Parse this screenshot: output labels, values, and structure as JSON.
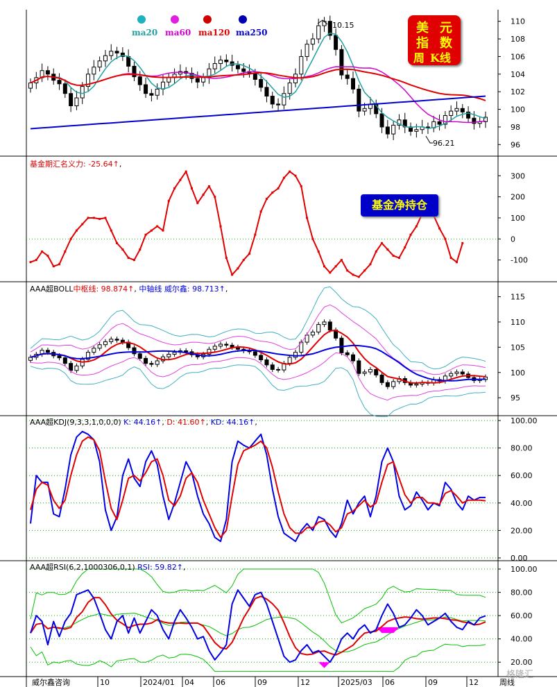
{
  "badge": {
    "chars": [
      "美",
      "元",
      "指",
      "数",
      "周",
      "K线"
    ]
  },
  "net_position_label": "基金净持仓",
  "footer": {
    "source": "威尔鑫咨询",
    "period": "周线"
  },
  "watermark": "格隆汇",
  "colors": {
    "ma20": "#20a0a0",
    "ma60": "#d000d0",
    "ma120": "#e00000",
    "ma250": "#0000c8",
    "red": "#e00000",
    "blue": "#0000e0",
    "green": "#00c000"
  },
  "chart_data": [
    {
      "id": "price",
      "type": "candlestick",
      "legend": [
        "ma20",
        "ma60",
        "ma120",
        "ma250"
      ],
      "ylim": [
        95,
        111
      ],
      "yticks": [
        96,
        98,
        100,
        102,
        104,
        106,
        108,
        110
      ],
      "annotations": {
        "high": "110.15",
        "low": "96.21"
      },
      "close": [
        103.0,
        103.6,
        104.4,
        104.0,
        103.3,
        102.9,
        101.8,
        100.4,
        101.3,
        102.6,
        104.0,
        104.8,
        105.5,
        106.1,
        106.6,
        106.4,
        106.0,
        104.9,
        103.7,
        102.8,
        101.8,
        101.6,
        102.3,
        103.1,
        103.6,
        104.0,
        104.3,
        104.1,
        103.5,
        103.1,
        103.6,
        104.6,
        105.2,
        105.6,
        105.4,
        105.0,
        104.6,
        104.3,
        104.1,
        103.4,
        102.5,
        101.5,
        100.6,
        100.5,
        101.8,
        103.0,
        104.0,
        106.0,
        107.4,
        108.0,
        109.5,
        110.0,
        108.4,
        106.8,
        103.9,
        103.5,
        102.3,
        99.8,
        100.1,
        100.6,
        99.5,
        98.0,
        97.2,
        98.2,
        98.8,
        98.0,
        97.5,
        97.7,
        98.0,
        97.9,
        98.6,
        98.3,
        99.3,
        99.8,
        100.1,
        99.7,
        99.0,
        98.4,
        98.6,
        99.1
      ]
    },
    {
      "id": "fund-positions",
      "type": "line",
      "title_label": "基金期汇名义力: ",
      "title_value": "-25.64",
      "ylim": [
        -190,
        370
      ],
      "yticks": [
        -100,
        0,
        100,
        200,
        300
      ],
      "values": [
        -110,
        -100,
        -60,
        -80,
        -130,
        -120,
        -60,
        0,
        40,
        70,
        100,
        100,
        95,
        100,
        40,
        -20,
        -50,
        -90,
        -100,
        -50,
        20,
        40,
        60,
        40,
        180,
        240,
        280,
        320,
        240,
        170,
        210,
        250,
        200,
        60,
        -90,
        -170,
        -140,
        -100,
        -70,
        20,
        130,
        190,
        220,
        240,
        290,
        320,
        300,
        250,
        100,
        0,
        -60,
        -130,
        -160,
        -130,
        -100,
        -150,
        -170,
        -180,
        -150,
        -120,
        -60,
        -20,
        -50,
        -80,
        -90,
        -40,
        20,
        60,
        120,
        150,
        110,
        50,
        0,
        -90,
        -110,
        -20
      ]
    },
    {
      "id": "boll",
      "type": "line",
      "title_label": "AAA超BOLL",
      "mid_label": "中枢线: ",
      "mid_value": "98.874",
      "axis_label": "中轴线 威尔鑫: ",
      "axis_value": "98.713",
      "ylim": [
        92,
        117
      ],
      "yticks": [
        95,
        100,
        105,
        110,
        115
      ]
    },
    {
      "id": "kdj",
      "type": "line",
      "title_label": "AAA超KDJ(9,3,3,1,0,0,0)",
      "series": [
        {
          "name": "K",
          "value": "44.16",
          "values": [
            25,
            60,
            55,
            55,
            32,
            30,
            50,
            75,
            88,
            92,
            90,
            86,
            70,
            35,
            20,
            30,
            60,
            72,
            58,
            52,
            70,
            78,
            68,
            45,
            28,
            40,
            55,
            70,
            62,
            45,
            32,
            25,
            15,
            12,
            28,
            70,
            85,
            82,
            80,
            85,
            90,
            75,
            50,
            30,
            18,
            15,
            12,
            20,
            25,
            20,
            30,
            28,
            20,
            15,
            25,
            42,
            32,
            40,
            45,
            30,
            45,
            70,
            80,
            70,
            45,
            35,
            38,
            48,
            42,
            35,
            40,
            38,
            55,
            50,
            40,
            35,
            45,
            42,
            44,
            44
          ]
        },
        {
          "name": "D",
          "value": "41.60",
          "values": [
            35,
            50,
            55,
            53,
            42,
            36,
            42,
            60,
            75,
            85,
            88,
            86,
            78,
            56,
            36,
            28,
            42,
            58,
            60,
            56,
            62,
            70,
            72,
            60,
            42,
            38,
            45,
            58,
            62,
            55,
            42,
            32,
            22,
            15,
            20,
            45,
            68,
            78,
            80,
            82,
            85,
            80,
            66,
            48,
            32,
            22,
            18,
            18,
            22,
            22,
            26,
            27,
            24,
            19,
            22,
            32,
            34,
            38,
            42,
            37,
            40,
            55,
            68,
            70,
            58,
            46,
            40,
            44,
            44,
            40,
            40,
            39,
            47,
            49,
            45,
            40,
            42,
            42,
            42,
            41.6
          ]
        },
        {
          "name": "KD",
          "value": "44.16"
        }
      ],
      "ylim": [
        0,
        100
      ],
      "yticks": [
        "0.00",
        "20.00",
        "40.00",
        "60.00",
        "80.00",
        "100.00"
      ]
    },
    {
      "id": "rsi",
      "type": "line",
      "title_label": "AAA超RSI(6,2,1000306,0,1)",
      "series": [
        {
          "name": "RSI",
          "value": "59.82",
          "values": [
            45,
            60,
            55,
            35,
            55,
            42,
            55,
            62,
            78,
            80,
            82,
            75,
            62,
            48,
            40,
            55,
            60,
            45,
            58,
            45,
            55,
            65,
            60,
            48,
            40,
            55,
            65,
            58,
            50,
            40,
            42,
            30,
            22,
            28,
            35,
            70,
            82,
            75,
            68,
            78,
            80,
            70,
            55,
            40,
            25,
            20,
            22,
            30,
            35,
            28,
            30,
            25,
            20,
            28,
            40,
            45,
            40,
            48,
            52,
            45,
            48,
            60,
            70,
            62,
            50,
            52,
            58,
            65,
            60,
            52,
            55,
            58,
            62,
            55,
            50,
            48,
            55,
            52,
            58,
            59.82
          ]
        }
      ],
      "ylim": [
        10,
        103
      ],
      "yticks": [
        "20.00",
        "40.00",
        "60.00",
        "80.00",
        "100.00"
      ]
    }
  ],
  "x_labels": [
    "10",
    "2024/01",
    "04",
    "06",
    "09",
    "12",
    "2025/03",
    "06",
    "09",
    "12"
  ]
}
